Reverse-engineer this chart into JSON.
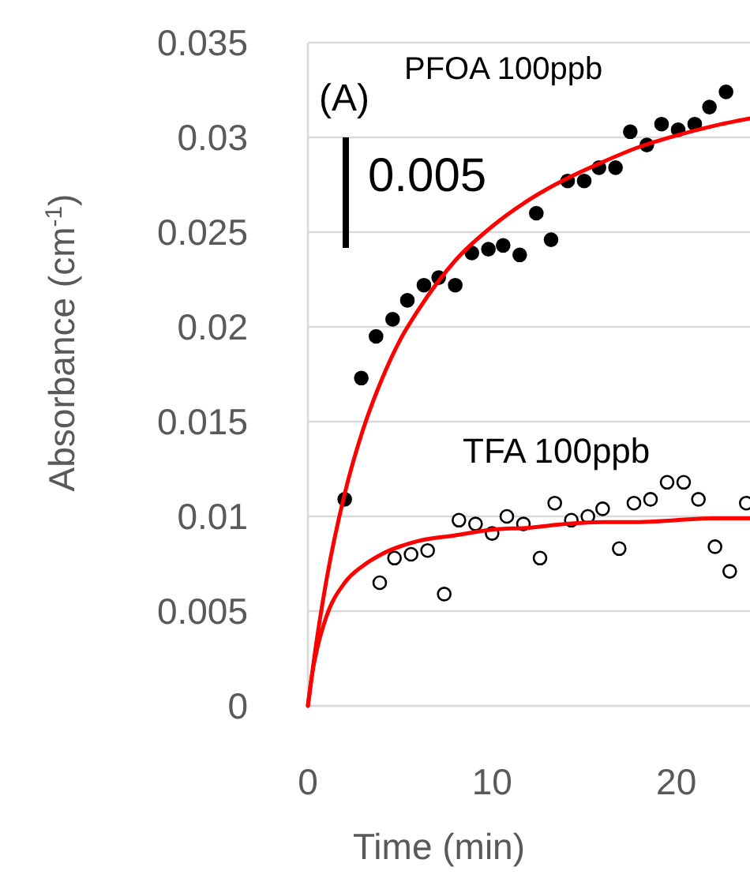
{
  "chart_data": {
    "type": "scatter",
    "xlabel": "Time (min)",
    "ylabel": "Absorbance (cm$^{-1}$)",
    "xlim": [
      0,
      24
    ],
    "xticks": [
      0,
      10,
      20
    ],
    "ylim": [
      0,
      0.035
    ],
    "yticks": [
      0,
      0.005,
      0.01,
      0.015,
      0.02,
      0.025,
      0.03,
      0.035
    ],
    "grid": "y",
    "marker": "circle",
    "annotations": [
      "(A)",
      "PFOA 100ppb",
      "0.005",
      "TFA 100ppb"
    ],
    "series": [
      {
        "color": "#000000",
        "x": [
          2.0,
          2.9,
          3.7,
          4.6,
          5.4,
          6.3,
          7.1,
          8.0,
          8.9,
          9.8,
          10.6,
          11.5,
          12.4,
          13.2,
          14.1,
          15.0,
          15.8,
          16.7,
          17.5,
          18.4,
          19.2,
          20.1,
          21.0,
          21.8,
          22.7
        ],
        "values": [
          0.0109,
          0.0173,
          0.0195,
          0.0204,
          0.0214,
          0.0222,
          0.0226,
          0.0222,
          0.0239,
          0.0241,
          0.0243,
          0.0238,
          0.026,
          0.0246,
          0.0277,
          0.0277,
          0.0284,
          0.0284,
          0.0303,
          0.0296,
          0.0307,
          0.0304,
          0.0307,
          0.0316,
          0.0324
        ]
      },
      {
        "color": "#ffffff",
        "x": [
          3.9,
          4.7,
          5.6,
          6.5,
          7.4,
          8.2,
          9.1,
          10.0,
          10.8,
          11.7,
          12.6,
          13.4,
          14.3,
          15.2,
          16.0,
          16.9,
          17.7,
          18.6,
          19.5,
          20.4,
          21.2,
          22.1,
          22.9,
          23.8
        ],
        "values": [
          0.0065,
          0.0078,
          0.008,
          0.0082,
          0.0059,
          0.0098,
          0.0096,
          0.0091,
          0.01,
          0.0096,
          0.0078,
          0.0107,
          0.0098,
          0.01,
          0.0104,
          0.0083,
          0.0107,
          0.0109,
          0.0118,
          0.0118,
          0.0109,
          0.0084,
          0.0071,
          0.0107
        ]
      },
      {
        "type": "line",
        "color": "#ff0000",
        "marker": "none",
        "x": [
          0,
          0.5,
          1,
          2,
          3,
          4,
          5,
          6,
          8,
          10,
          12,
          14,
          16,
          18,
          20,
          22,
          24
        ],
        "values": [
          0,
          0.0036,
          0.0066,
          0.0112,
          0.0146,
          0.0172,
          0.0193,
          0.0209,
          0.0235,
          0.0253,
          0.0267,
          0.0278,
          0.0287,
          0.0295,
          0.0301,
          0.0306,
          0.031
        ]
      },
      {
        "type": "line",
        "color": "#ff0000",
        "marker": "none",
        "x": [
          0,
          0.25,
          0.5,
          1,
          2,
          3,
          4,
          6,
          8,
          10,
          12,
          14,
          16,
          18,
          20,
          22,
          24
        ],
        "values": [
          0,
          0.0018,
          0.003,
          0.0047,
          0.0065,
          0.0074,
          0.008,
          0.0087,
          0.009,
          0.0093,
          0.0094,
          0.0096,
          0.0097,
          0.0097,
          0.0098,
          0.0099,
          0.0099
        ]
      }
    ]
  }
}
